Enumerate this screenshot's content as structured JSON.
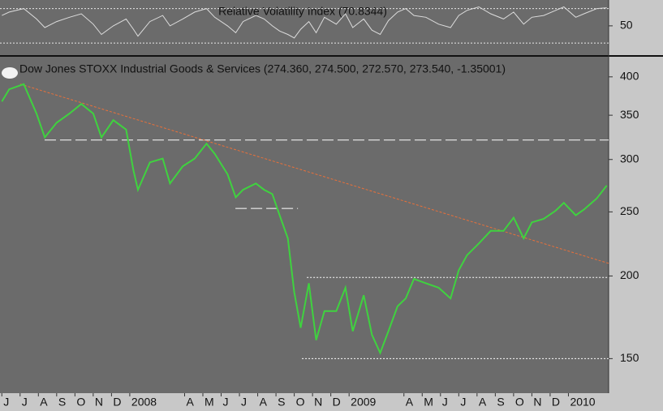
{
  "chart_data": [
    {
      "type": "line",
      "title": "Relative Volatility Index (70.8344)",
      "x": [
        0,
        0.4,
        1.2,
        1.9,
        2.35,
        3.0,
        3.7,
        4.35,
        5.0,
        5.45,
        6.1,
        6.8,
        7.2,
        7.45,
        8.1,
        8.8,
        9.2,
        9.9,
        10.55,
        11.2,
        11.65,
        12.35,
        12.8,
        13.2,
        13.9,
        14.35,
        14.8,
        15.2,
        15.65,
        16.0,
        16.35,
        16.8,
        17.2,
        17.65,
        18.3,
        18.8,
        19.2,
        19.8,
        20.25,
        20.7,
        21.15,
        21.65,
        22.1,
        22.55,
        23.2,
        23.9,
        24.55,
        25.0,
        25.45,
        26.1,
        26.75,
        27.45,
        28.0,
        28.55,
        29.0,
        29.65,
        30.3,
        30.75,
        31.4,
        31.85,
        32.55,
        33.1
      ],
      "series": [
        {
          "color": "#dcdcdc",
          "values": [
            62,
            66,
            70,
            58,
            48,
            55,
            60,
            64,
            52,
            40,
            50,
            58,
            46,
            38,
            55,
            62,
            50,
            58,
            66,
            70,
            60,
            50,
            42,
            55,
            62,
            58,
            50,
            44,
            40,
            36,
            46,
            55,
            42,
            60,
            52,
            64,
            48,
            58,
            45,
            40,
            56,
            66,
            70,
            62,
            60,
            52,
            48,
            62,
            68,
            72,
            64,
            58,
            66,
            52,
            60,
            62,
            68,
            72,
            60,
            64,
            70,
            71
          ]
        }
      ],
      "xlim": [
        -0.1,
        33.2
      ],
      "ylim": [
        16,
        80
      ],
      "yticks": [
        50
      ],
      "levels": [
        {
          "value": 70,
          "style": "dotted",
          "color": "#e8e8e8",
          "x": [
            -0.1,
            33.2
          ]
        },
        {
          "value": 30,
          "style": "dotted",
          "color": "#e8e8e8",
          "x": [
            -0.1,
            33.2
          ]
        }
      ]
    },
    {
      "type": "line",
      "title": "Dow Jones STOXX Industrial Goods & Services (274.360, 274.500, 272.570, 273.540, -1.35001)",
      "x": [
        0,
        0.4,
        1.2,
        1.9,
        2.35,
        3.0,
        3.7,
        4.35,
        5.0,
        5.45,
        6.1,
        6.8,
        7.2,
        7.45,
        8.1,
        8.8,
        9.2,
        9.9,
        10.55,
        11.2,
        11.65,
        12.35,
        12.8,
        13.2,
        13.9,
        14.35,
        14.8,
        15.2,
        15.65,
        16.0,
        16.35,
        16.8,
        17.2,
        17.65,
        18.3,
        18.8,
        19.2,
        19.8,
        20.25,
        20.7,
        21.15,
        21.65,
        22.1,
        22.55,
        23.2,
        23.9,
        24.55,
        25.0,
        25.45,
        26.1,
        26.75,
        27.45,
        28.0,
        28.55,
        29.0,
        29.65,
        30.3,
        30.75,
        31.4,
        31.85,
        32.55,
        33.1
      ],
      "series": [
        {
          "color": "#3fd23f",
          "values": [
            367,
            383,
            390,
            352,
            324,
            341,
            352,
            364,
            352,
            324,
            344,
            333,
            289,
            270,
            297,
            301,
            276,
            293,
            301,
            317,
            306,
            285,
            263,
            270,
            276,
            270,
            266,
            247,
            228,
            189,
            167,
            195,
            160,
            177,
            177,
            192,
            165,
            187,
            163,
            153,
            165,
            180,
            185,
            198,
            195,
            192,
            185,
            204,
            215,
            224,
            234,
            234,
            245,
            228,
            241,
            244,
            251,
            258,
            247,
            252,
            262,
            274
          ]
        }
      ],
      "xlim": [
        -0.1,
        33.2
      ],
      "ylim": [
        133,
        429
      ],
      "log": true,
      "yticks": [
        150,
        200,
        250,
        300,
        350,
        400
      ],
      "xticks": [
        {
          "value": 0,
          "label": "J"
        },
        {
          "value": 1,
          "label": "J"
        },
        {
          "value": 2,
          "label": "A"
        },
        {
          "value": 3,
          "label": "S"
        },
        {
          "value": 4,
          "label": "O"
        },
        {
          "value": 5,
          "label": "N"
        },
        {
          "value": 6,
          "label": "D"
        },
        {
          "value": 7,
          "label": "2008"
        },
        {
          "value": 10,
          "label": "A"
        },
        {
          "value": 11,
          "label": "M"
        },
        {
          "value": 12,
          "label": "J"
        },
        {
          "value": 13,
          "label": "J"
        },
        {
          "value": 14,
          "label": "A"
        },
        {
          "value": 15,
          "label": "S"
        },
        {
          "value": 16,
          "label": "O"
        },
        {
          "value": 17,
          "label": "N"
        },
        {
          "value": 18,
          "label": "D"
        },
        {
          "value": 19,
          "label": "2009"
        },
        {
          "value": 22,
          "label": "A"
        },
        {
          "value": 23,
          "label": "M"
        },
        {
          "value": 24,
          "label": "J"
        },
        {
          "value": 25,
          "label": "J"
        },
        {
          "value": 26,
          "label": "A"
        },
        {
          "value": 27,
          "label": "S"
        },
        {
          "value": 28,
          "label": "O"
        },
        {
          "value": 29,
          "label": "N"
        },
        {
          "value": 30,
          "label": "D"
        },
        {
          "value": 31,
          "label": "2010"
        }
      ],
      "levels": [
        {
          "value": 321,
          "style": "dashed",
          "color": "#ffffff",
          "x": [
            2.34,
            33.2
          ]
        },
        {
          "value": 253,
          "style": "dashed",
          "color": "#ffffff",
          "x": [
            12.78,
            16.2
          ]
        },
        {
          "value": 199,
          "style": "dotted",
          "color": "#ffffff",
          "x": [
            16.69,
            33.2
          ]
        },
        {
          "value": 150,
          "style": "dotted",
          "color": "#ffffff",
          "x": [
            16.42,
            33.2
          ]
        }
      ],
      "trendline": {
        "color": "#e8703a",
        "x": [
          1.01,
          33.2
        ],
        "y": [
          390,
          209
        ]
      }
    }
  ]
}
